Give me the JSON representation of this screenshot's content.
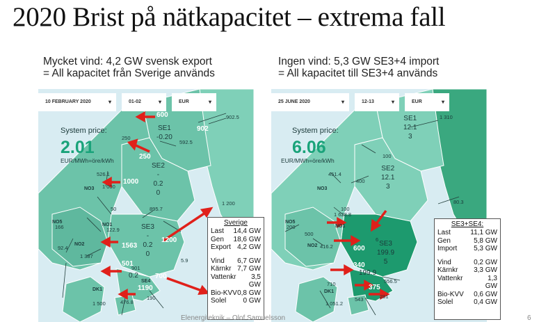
{
  "title": "2020 Brist på nätkapacitet – extrema fall",
  "left": {
    "subtitle_1": "Mycket vind: 4,2 GW svensk export",
    "subtitle_2": "= All kapacitet från Sverige används",
    "controls": {
      "date": "10 FEBRUARY 2020",
      "hour": "01-02",
      "currency": "EUR"
    },
    "price_label": "System price:",
    "price": "2.01",
    "price_unit": "EUR/MWh=öre/kWh",
    "zones": {
      "se1_name": "SE1",
      "se1_price": "-0.20",
      "se2_name": "SE2",
      "se2_dash": "-",
      "se2_price": "0.2",
      "se2_extra": "0",
      "se3_name": "SE3",
      "se3_dash": "-",
      "se3_price": "0.2",
      "se3_extra": "0",
      "se4_partial": "0.2"
    },
    "zone_codes": {
      "no3": "NO3",
      "no5": "NO5",
      "no1": "NO1",
      "no2": "NO2",
      "dk1": "DK1",
      "se4": "SE4"
    },
    "flows": {
      "f600": "600",
      "f902": "902",
      "f9025": "902.5",
      "f250": "250",
      "f250b": "250",
      "f5925": "592.5",
      "f5261": "526.1",
      "f1000": "1000",
      "f1000b": "1 000",
      "f50": "50",
      "f8957": "895.7",
      "f1200": "1 200",
      "f1200b": "1200",
      "f1229": "122.9",
      "f1563": "1563",
      "f1387": "1 387",
      "f924": "92.4",
      "f501": "501",
      "f901": "901",
      "f700": "700",
      "f1190": "1190",
      "f1500": "1 500",
      "f4768": "476.8",
      "f190": "190",
      "f59": "5.9",
      "f166": "166"
    },
    "info": {
      "header": "Sverige",
      "rows1": [
        {
          "label": "Last",
          "value": "14,4 GW"
        },
        {
          "label": "Gen",
          "value": "18,6 GW"
        },
        {
          "label": "Export",
          "value": "4,2 GW"
        }
      ],
      "rows2": [
        {
          "label": "Vind",
          "value": "6,7 GW"
        },
        {
          "label": "Kärnkr",
          "value": "7,7 GW"
        },
        {
          "label": "Vattenkr",
          "value": "3,5"
        },
        {
          "label": "",
          "value": "GW"
        },
        {
          "label": "Bio-KVV",
          "value": "0,8 GW"
        },
        {
          "label": "Solel",
          "value": "0 GW"
        }
      ]
    }
  },
  "right": {
    "subtitle_1": "Ingen vind: 5,3 GW SE3+4 import",
    "subtitle_2": "= All kapacitet till SE3+4 används",
    "controls": {
      "date": "25 JUNE 2020",
      "hour": "12-13",
      "currency": "EUR"
    },
    "price_label": "System price:",
    "price": "6.06",
    "price_unit": "EUR/MWh=öre/kWh",
    "zones": {
      "se1_name": "SE1",
      "se1_price": "12.1",
      "se1_extra": "3",
      "se2_name": "SE2",
      "se2_price": "12.1",
      "se2_extra": "3",
      "se3_name": "SE3",
      "se3_price": "199.9",
      "se3_extra": "5",
      "se4_partial": "199.9"
    },
    "zone_codes": {
      "no3": "NO3",
      "no5": "NO5",
      "no1": "NO1",
      "no2": "NO2",
      "dk1": "DK1"
    },
    "flows": {
      "f1310": "1 310",
      "f100": "100",
      "f100b": "100",
      "f4514": "451.4",
      "f400": "400",
      "f1628": "1 628.8",
      "f200": "200",
      "f500": "500",
      "f4162": "416.2",
      "f803": "80.3",
      "f600": "600",
      "f340": "340",
      "f5565": "556.5",
      "f375": "375",
      "f710": "710",
      "f1051": "1 051.2",
      "f543": "543",
      "f281": "281",
      "f6": "6"
    },
    "info": {
      "header": "SE3+SE4:",
      "rows1": [
        {
          "label": "Last",
          "value": "11,1 GW"
        },
        {
          "label": "Gen",
          "value": "5,8 GW"
        },
        {
          "label": "Import",
          "value": "5,3 GW"
        }
      ],
      "rows2": [
        {
          "label": "Vind",
          "value": "0,2 GW"
        },
        {
          "label": "Kärnkr",
          "value": "3,3 GW"
        },
        {
          "label": "Vattenkr",
          "value": "1,3"
        },
        {
          "label": "",
          "value": "GW"
        },
        {
          "label": "Bio-KVV",
          "value": "0,6 GW"
        },
        {
          "label": "Solel",
          "value": "0,4 GW"
        }
      ]
    }
  },
  "footer": {
    "left": "Elenergiteknik – Olof Samuelsson",
    "page": "6"
  }
}
